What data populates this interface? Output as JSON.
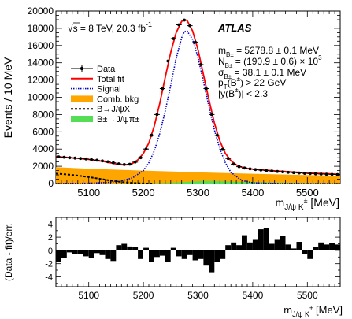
{
  "chart_data": [
    {
      "type": "line",
      "panel": "main",
      "ylabel": "Events / 10 MeV",
      "xlabel_main": "m",
      "xlabel_sub": "J/ψ K",
      "xlabel_sup": "±",
      "xlabel_unit": " [MeV]",
      "xlim": [
        5040,
        5560
      ],
      "ylim": [
        0,
        20000
      ],
      "x_ticks": [
        5100,
        5200,
        5300,
        5400,
        5500
      ],
      "y_ticks": [
        0,
        2000,
        4000,
        6000,
        8000,
        10000,
        12000,
        14000,
        16000,
        18000,
        20000
      ],
      "energy_prefix": "s",
      "energy_rest": " = 8 TeV, 20.3 fb",
      "energy_sup": "-1",
      "experiment_label": "ATLAS",
      "fit_results": {
        "mass": {
          "sym": "m",
          "sub": "B±",
          "text": " = 5278.8 ± 0.1 MeV"
        },
        "yield": {
          "sym": "N",
          "sub": "B±",
          "text": " = (190.9 ± 0.6) × 10",
          "sup": "3"
        },
        "width": {
          "sym": "σ",
          "sub": "B±",
          "text": " = 38.1 ± 0.1 MeV"
        },
        "pt_cut": {
          "sym": "p",
          "sub": "T",
          "text": "(B",
          "sup": "±",
          "text2": ") > 22 GeV"
        },
        "y_cut": {
          "text": "|y(B",
          "sup": "±",
          "text2": ")| < 2.3"
        }
      },
      "legend": {
        "placement": "middle-left",
        "entries": [
          {
            "label": "Data",
            "kind": "marker",
            "color": "#000000"
          },
          {
            "label": "Total fit",
            "kind": "line",
            "color": "#ff0000"
          },
          {
            "label": "Signal",
            "kind": "dotted",
            "color": "#0000cc"
          },
          {
            "label": "Comb. bkg",
            "kind": "fill",
            "color": "#ffa500"
          },
          {
            "label": "B→J/ψX",
            "kind": "dashed",
            "color": "#000000"
          },
          {
            "label": "B±→J/ψπ±",
            "kind": "fill",
            "color": "#55dd55"
          }
        ]
      },
      "series": [
        {
          "name": "Data",
          "x": [
            5045,
            5055,
            5065,
            5075,
            5085,
            5095,
            5105,
            5115,
            5125,
            5135,
            5145,
            5155,
            5165,
            5175,
            5185,
            5195,
            5205,
            5215,
            5225,
            5235,
            5245,
            5255,
            5265,
            5275,
            5285,
            5295,
            5305,
            5315,
            5325,
            5335,
            5345,
            5355,
            5365,
            5375,
            5385,
            5395,
            5405,
            5415,
            5425,
            5435,
            5445,
            5455,
            5465,
            5475,
            5485,
            5495,
            5505,
            5515,
            5525,
            5535,
            5545,
            5555
          ],
          "values": [
            3100,
            3050,
            3000,
            2950,
            2900,
            2850,
            2780,
            2700,
            2620,
            2520,
            2400,
            2280,
            2200,
            2240,
            2480,
            3000,
            4000,
            5600,
            8000,
            11000,
            14200,
            16800,
            18400,
            18950,
            18300,
            16400,
            13800,
            11000,
            8000,
            5600,
            3950,
            2900,
            2250,
            1950,
            1800,
            1700,
            1620,
            1560,
            1500,
            1450,
            1400,
            1350,
            1300,
            1260,
            1220,
            1180,
            1150,
            1120,
            1100,
            1080,
            1060,
            1040
          ]
        },
        {
          "name": "Total fit",
          "x": [
            5040,
            5050,
            5060,
            5070,
            5080,
            5090,
            5100,
            5110,
            5120,
            5130,
            5140,
            5150,
            5160,
            5170,
            5180,
            5190,
            5200,
            5210,
            5220,
            5230,
            5240,
            5250,
            5260,
            5270,
            5275,
            5280,
            5290,
            5300,
            5310,
            5320,
            5330,
            5340,
            5350,
            5360,
            5370,
            5380,
            5390,
            5400,
            5420,
            5440,
            5460,
            5480,
            5500,
            5520,
            5540,
            5560
          ],
          "values": [
            3120,
            3080,
            3030,
            2980,
            2920,
            2860,
            2790,
            2710,
            2620,
            2520,
            2400,
            2270,
            2170,
            2170,
            2330,
            2750,
            3500,
            4700,
            6700,
            9300,
            12300,
            15200,
            17500,
            18800,
            19000,
            18900,
            17700,
            15500,
            12600,
            9700,
            7000,
            4900,
            3500,
            2650,
            2150,
            1890,
            1750,
            1660,
            1560,
            1470,
            1390,
            1310,
            1240,
            1180,
            1120,
            1060
          ]
        },
        {
          "name": "Signal",
          "x": [
            5040,
            5060,
            5080,
            5100,
            5120,
            5140,
            5160,
            5180,
            5200,
            5210,
            5220,
            5230,
            5240,
            5250,
            5260,
            5270,
            5275,
            5280,
            5290,
            5300,
            5310,
            5320,
            5330,
            5340,
            5350,
            5360,
            5380,
            5400,
            5420,
            5440,
            5460,
            5480,
            5500,
            5520,
            5540,
            5560
          ],
          "values": [
            0,
            10,
            20,
            40,
            80,
            150,
            300,
            650,
            1500,
            2400,
            3800,
            5800,
            8400,
            11400,
            14500,
            16900,
            17600,
            17700,
            16700,
            14600,
            11800,
            8900,
            6200,
            4000,
            2400,
            1300,
            350,
            90,
            40,
            20,
            10,
            0,
            0,
            0,
            0,
            0
          ]
        },
        {
          "name": "Comb. bkg",
          "x": [
            5040,
            5100,
            5200,
            5300,
            5400,
            5500,
            5560
          ],
          "values": [
            1900,
            1720,
            1500,
            1300,
            1130,
            980,
            900
          ]
        },
        {
          "name": "B→J/ψX",
          "x": [
            5040,
            5060,
            5080,
            5100,
            5120,
            5140,
            5160,
            5180,
            5200,
            5210,
            5220
          ],
          "values": [
            1150,
            1050,
            920,
            750,
            550,
            340,
            170,
            60,
            10,
            0,
            0
          ]
        },
        {
          "name": "B±→J/ψπ±",
          "x": [
            5040,
            5100,
            5200,
            5240,
            5270,
            5290,
            5310,
            5330,
            5360,
            5400,
            5450,
            5500,
            5560
          ],
          "values": [
            0,
            10,
            30,
            70,
            150,
            230,
            290,
            280,
            220,
            150,
            90,
            50,
            30
          ]
        }
      ]
    },
    {
      "type": "bar",
      "panel": "pull",
      "ylabel": "(Data - fit)/err.",
      "xlabel_main": "m",
      "xlabel_sub": "J/ψ K",
      "xlabel_sup": "±",
      "xlabel_unit": " [MeV]",
      "xlim": [
        5040,
        5560
      ],
      "ylim": [
        -5.5,
        5
      ],
      "x_ticks": [
        5100,
        5200,
        5300,
        5400,
        5500
      ],
      "y_ticks": [
        -4,
        -2,
        0,
        2,
        4
      ],
      "bin_width": 10,
      "bin_start": 5040,
      "values": [
        -1.8,
        -1.2,
        -0.3,
        -0.5,
        -0.6,
        -0.9,
        -1.1,
        -0.4,
        -0.7,
        -1.3,
        -1.6,
        0.8,
        1.0,
        0.6,
        0.5,
        -1.3,
        0.4,
        -1.8,
        -1.0,
        -0.8,
        -1.7,
        0.4,
        -0.9,
        -1.3,
        -0.7,
        -1.5,
        -1.3,
        -2.3,
        -3.3,
        -1.7,
        -1.3,
        0.8,
        1.2,
        0.8,
        2.3,
        1.2,
        1.6,
        3.2,
        3.4,
        1.0,
        1.6,
        2.2,
        0.9,
        0.3,
        1.3,
        -0.6,
        -1.3,
        0.5,
        1.2,
        0.9,
        1.1,
        0.9
      ]
    }
  ]
}
